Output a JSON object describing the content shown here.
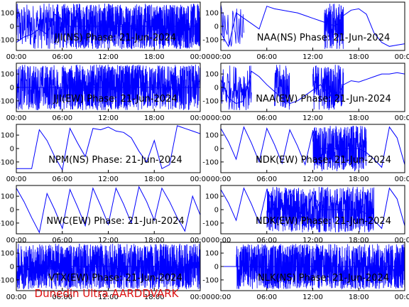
{
  "credit": "Dunedin Ultra AARDDVARK",
  "chart_data": [
    {
      "type": "line",
      "title": "JJI(NS) Phase: 21-Jun-2024",
      "xticks": [
        "00:00",
        "06:00",
        "12:00",
        "18:00",
        "00:00"
      ],
      "yticks": [
        "100",
        "0",
        "-100"
      ],
      "ylim": [
        -180,
        180
      ],
      "series": [
        {
          "color": "#0000ff",
          "x": [
            0,
            1,
            2,
            3,
            4,
            5,
            6,
            7,
            8,
            9,
            10,
            11,
            12,
            13,
            14,
            15,
            16,
            17,
            18,
            19,
            20,
            21,
            22,
            23,
            24
          ],
          "values": [
            -120,
            -80,
            -60,
            -20,
            -60,
            90,
            50,
            0,
            0,
            0,
            0,
            0,
            0,
            0,
            0,
            0,
            0,
            0,
            0,
            0,
            0,
            0,
            0,
            0,
            0
          ]
        }
      ],
      "noise": [
        [
          0,
          4,
          0.4
        ],
        [
          4,
          7,
          0.8
        ],
        [
          7,
          24,
          1.0
        ]
      ]
    },
    {
      "type": "line",
      "title": "NAA(NS) Phase: 21-Jun-2024",
      "xticks": [
        "00:00",
        "06:00",
        "12:00",
        "18:00",
        "00:00"
      ],
      "yticks": [
        "100",
        "0",
        "-100"
      ],
      "ylim": [
        -180,
        180
      ],
      "series": [
        {
          "color": "#0000ff",
          "x": [
            0,
            1,
            2,
            3,
            4,
            5,
            6,
            7,
            8,
            9,
            10,
            11,
            12,
            13,
            14,
            15,
            16,
            17,
            18,
            19,
            20,
            21,
            22,
            23,
            24
          ],
          "values": [
            -50,
            -150,
            100,
            60,
            20,
            -20,
            150,
            130,
            120,
            110,
            100,
            80,
            60,
            40,
            20,
            0,
            80,
            120,
            130,
            90,
            -50,
            -120,
            -150,
            -140,
            -130
          ]
        }
      ],
      "noise": [
        [
          13.5,
          16,
          1.0
        ],
        [
          0,
          3,
          0.15
        ]
      ]
    },
    {
      "type": "line",
      "title": "JJI(EW) Phase: 21-Jun-2024",
      "xticks": [
        "00:00",
        "06:00",
        "12:00",
        "18:00",
        "00:00"
      ],
      "yticks": [
        "100",
        "0",
        "-100"
      ],
      "ylim": [
        -180,
        180
      ],
      "series": [
        {
          "color": "#0000ff",
          "x": [
            0,
            1,
            2,
            3,
            4,
            5,
            6,
            7,
            8,
            9,
            10,
            11,
            12,
            13,
            14,
            15,
            16,
            17,
            18,
            19,
            20,
            21,
            22,
            23,
            24
          ],
          "values": [
            0,
            0,
            0,
            0,
            0,
            0,
            0,
            0,
            0,
            0,
            0,
            0,
            0,
            0,
            0,
            0,
            0,
            0,
            0,
            0,
            0,
            0,
            0,
            0,
            0
          ]
        }
      ],
      "noise": [
        [
          0,
          6,
          0.6
        ],
        [
          6,
          16,
          1.0
        ],
        [
          16,
          24,
          0.7
        ]
      ]
    },
    {
      "type": "line",
      "title": "NAA(EW) Phase: 21-Jun-2024",
      "xticks": [
        "00:00",
        "06:00",
        "12:00",
        "18:00",
        "00:00"
      ],
      "yticks": [
        "100",
        "0",
        "-100"
      ],
      "ylim": [
        -180,
        180
      ],
      "series": [
        {
          "color": "#0000ff",
          "x": [
            0,
            1,
            2,
            3,
            4,
            5,
            6,
            7,
            8,
            9,
            10,
            11,
            12,
            13,
            14,
            15,
            16,
            17,
            18,
            19,
            20,
            21,
            22,
            23,
            24
          ],
          "values": [
            60,
            -80,
            -120,
            -100,
            120,
            80,
            20,
            -30,
            -80,
            -120,
            -100,
            -60,
            -20,
            20,
            -40,
            -100,
            20,
            50,
            40,
            60,
            80,
            100,
            100,
            110,
            100
          ]
        }
      ],
      "noise": [
        [
          0,
          4,
          0.3
        ],
        [
          7,
          9,
          0.6
        ],
        [
          12,
          16,
          0.6
        ]
      ]
    },
    {
      "type": "line",
      "title": "NPM(NS) Phase: 21-Jun-2024",
      "xticks": [
        "00:00",
        "06:00",
        "12:00",
        "18:00",
        "00:00"
      ],
      "yticks": [
        "100",
        "0",
        "-100"
      ],
      "ylim": [
        -180,
        180
      ],
      "series": [
        {
          "color": "#0000ff",
          "x": [
            0,
            1,
            2,
            3,
            4,
            5,
            6,
            7,
            8,
            9,
            10,
            11,
            12,
            13,
            14,
            15,
            16,
            17,
            18,
            19,
            20,
            21,
            22,
            23,
            24
          ],
          "values": [
            -150,
            -150,
            -150,
            140,
            60,
            -60,
            -160,
            150,
            40,
            -60,
            150,
            140,
            160,
            130,
            120,
            80,
            -20,
            -100,
            60,
            -150,
            -120,
            170,
            150,
            130,
            110
          ]
        }
      ],
      "noise": []
    },
    {
      "type": "line",
      "title": "NDK(EW) Phase: 21-Jun-2024",
      "xticks": [
        "00:00",
        "06:00",
        "12:00",
        "18:00",
        "00:00"
      ],
      "yticks": [
        "100",
        "0",
        "-100"
      ],
      "ylim": [
        -180,
        180
      ],
      "series": [
        {
          "color": "#0000ff",
          "x": [
            0,
            1,
            2,
            3,
            4,
            5,
            6,
            7,
            8,
            9,
            10,
            11,
            12,
            13,
            14,
            15,
            16,
            17,
            18,
            19,
            20,
            21,
            22,
            23,
            24
          ],
          "values": [
            150,
            50,
            -80,
            160,
            40,
            -100,
            150,
            30,
            -110,
            140,
            20,
            -120,
            130,
            0,
            0,
            0,
            0,
            0,
            0,
            -30,
            -80,
            -140,
            160,
            80,
            -120
          ]
        }
      ],
      "noise": [
        [
          12,
          19,
          0.9
        ]
      ]
    },
    {
      "type": "line",
      "title": "NWC(EW) Phase: 21-Jun-2024",
      "xticks": [
        "00:00",
        "06:00",
        "12:00",
        "18:00",
        "00:00"
      ],
      "yticks": [
        "100",
        "0",
        "-100"
      ],
      "ylim": [
        -180,
        180
      ],
      "series": [
        {
          "color": "#0000ff",
          "x": [
            0,
            1,
            2,
            3,
            4,
            5,
            6,
            7,
            8,
            9,
            10,
            11,
            12,
            13,
            14,
            15,
            16,
            17,
            18,
            19,
            20,
            21,
            22,
            23,
            24
          ],
          "values": [
            160,
            60,
            -60,
            -170,
            120,
            0,
            -140,
            150,
            20,
            -120,
            160,
            30,
            -110,
            160,
            40,
            -100,
            170,
            60,
            -80,
            160,
            60,
            -60,
            -160,
            100,
            -40
          ]
        }
      ],
      "noise": []
    },
    {
      "type": "line",
      "title": "NDK(EW) Phase: 21-Jun-2024",
      "xticks": [
        "00:00",
        "06:00",
        "12:00",
        "18:00",
        "00:00"
      ],
      "yticks": [
        "100",
        "0",
        "-100"
      ],
      "ylim": [
        -180,
        180
      ],
      "series": [
        {
          "color": "#0000ff",
          "x": [
            0,
            1,
            2,
            3,
            4,
            5,
            6,
            7,
            8,
            9,
            10,
            11,
            12,
            13,
            14,
            15,
            16,
            17,
            18,
            19,
            20,
            21,
            22,
            23,
            24
          ],
          "values": [
            150,
            50,
            -80,
            160,
            40,
            -100,
            150,
            30,
            -110,
            140,
            20,
            -120,
            130,
            0,
            0,
            0,
            0,
            0,
            0,
            -30,
            -80,
            -140,
            160,
            80,
            -120
          ]
        }
      ],
      "noise": [
        [
          6,
          20,
          0.8
        ]
      ]
    },
    {
      "type": "line",
      "title": "VTX(EW) Phase: 21-Jun-2024",
      "xticks": [
        "00:00",
        "06:00",
        "12:00",
        "18:00",
        "00:00"
      ],
      "yticks": [
        "100",
        "0",
        "-100"
      ],
      "ylim": [
        -180,
        180
      ],
      "series": [
        {
          "color": "#0000ff",
          "x": [
            0,
            1,
            2,
            3,
            4,
            5,
            6,
            7,
            8,
            9,
            10,
            11,
            12,
            13,
            14,
            15,
            16,
            17,
            18,
            19,
            20,
            21,
            22,
            23,
            24
          ],
          "values": [
            0,
            0,
            0,
            0,
            0,
            0,
            0,
            0,
            0,
            0,
            0,
            0,
            0,
            0,
            0,
            0,
            0,
            0,
            0,
            0,
            0,
            0,
            0,
            0,
            0
          ]
        }
      ],
      "noise": [
        [
          0,
          24,
          0.9
        ]
      ]
    },
    {
      "type": "line",
      "title": "NLK(NS) Phase: 21-Jun-2024",
      "xticks": [
        "00:00",
        "06:00",
        "12:00",
        "18:00",
        "00:00"
      ],
      "yticks": [
        "100",
        "0",
        "-100"
      ],
      "ylim": [
        -180,
        180
      ],
      "series": [
        {
          "color": "#0000ff",
          "x": [
            0,
            1,
            2,
            3,
            4,
            5,
            6,
            7,
            8,
            9,
            10,
            11,
            12,
            13,
            14,
            15,
            16,
            17,
            18,
            19,
            20,
            21,
            22,
            23,
            24
          ],
          "values": [
            0,
            0,
            0,
            0,
            0,
            0,
            0,
            0,
            0,
            0,
            0,
            0,
            0,
            0,
            0,
            0,
            0,
            0,
            0,
            0,
            0,
            0,
            0,
            0,
            0
          ]
        }
      ],
      "noise": [
        [
          2,
          24,
          1.0
        ]
      ]
    }
  ]
}
